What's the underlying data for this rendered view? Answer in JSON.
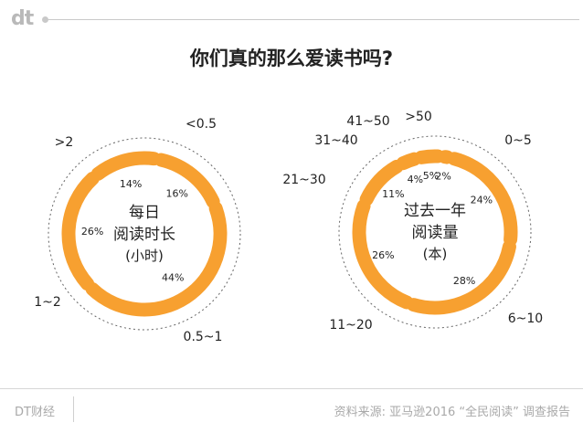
{
  "brand": {
    "logo": "dt",
    "footer_left": "DT财经"
  },
  "title": "你们真的那么爱读书吗?",
  "source": "资料来源: 亚马逊2016 “全民阅读” 调查报告",
  "colors": {
    "ring": "#F7A030",
    "outline": "#666666",
    "text": "#222222"
  },
  "chart_data": [
    {
      "type": "pie",
      "style": "ring",
      "center_lines": [
        "每日",
        "阅读时长",
        "(小时)"
      ],
      "slices": [
        {
          "label": "<0.5",
          "value": 16,
          "pct_label": "16%"
        },
        {
          "label": "0.5~1",
          "value": 44,
          "pct_label": "44%"
        },
        {
          "label": "1~2",
          "value": 26,
          "pct_label": "26%"
        },
        {
          "label": ">2",
          "value": 14,
          "pct_label": "14%"
        }
      ]
    },
    {
      "type": "pie",
      "style": "ring",
      "center_lines": [
        "过去一年",
        "阅读量",
        "(本)"
      ],
      "slices": [
        {
          "label": "0~5",
          "value": 24,
          "pct_label": "24%"
        },
        {
          "label": "6~10",
          "value": 28,
          "pct_label": "28%"
        },
        {
          "label": "11~20",
          "value": 26,
          "pct_label": "26%"
        },
        {
          "label": "21~30",
          "value": 11,
          "pct_label": "11%"
        },
        {
          "label": "31~40",
          "value": 4,
          "pct_label": "4%"
        },
        {
          "label": "41~50",
          "value": 5,
          "pct_label": "5%"
        },
        {
          "label": ">50",
          "value": 2,
          "pct_label": "2%"
        }
      ]
    }
  ]
}
